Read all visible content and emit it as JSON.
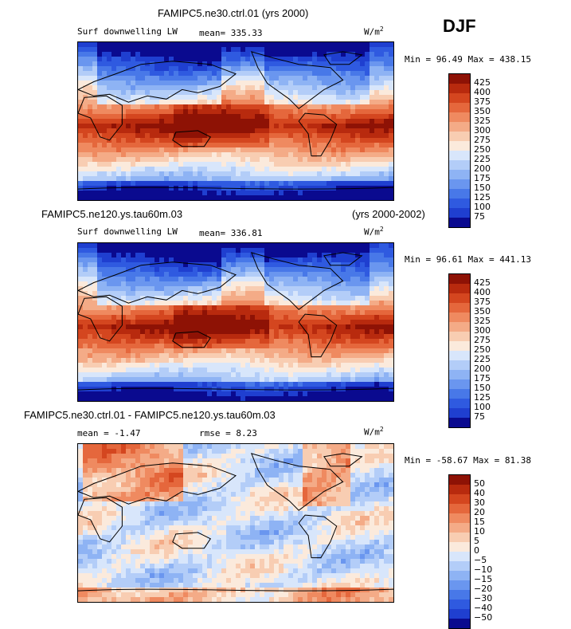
{
  "season": "DJF",
  "units": "W/m",
  "units_sup": "2",
  "colors": {
    "abs_scale": [
      "#ffffff",
      "#0a0a8f",
      "#1f3fd0",
      "#2f5ae0",
      "#4878e8",
      "#6a96ef",
      "#8eb3f4",
      "#b3cdf8",
      "#d8e6fb",
      "#fbeadc",
      "#f8cdb2",
      "#f4ab87",
      "#ef8a60",
      "#e5673c",
      "#d4461f",
      "#b82a0e",
      "#8e1205"
    ],
    "diff_scale": [
      "#ffffff",
      "#0a0a8f",
      "#1f3fd0",
      "#2f5ae0",
      "#4878e8",
      "#6a96ef",
      "#8eb3f4",
      "#b3cdf8",
      "#d8e6fb",
      "#fbeadc",
      "#f8cdb2",
      "#f4ab87",
      "#ef8a60",
      "#e5673c",
      "#d4461f",
      "#b82a0e",
      "#8e1205"
    ],
    "coast": "#000000"
  },
  "chart_data": [
    {
      "type": "heatmap",
      "title": "FAMIPC5.ne30.ctrl.01 (yrs 2000)",
      "subtitle_left": "Surf downwelling LW",
      "stat_label": "mean=",
      "stat_value": "335.33",
      "min_label": "Min =",
      "min_value": "96.49",
      "max_label": "Max =",
      "max_value": "438.15",
      "colorbar_levels": [
        "425",
        "400",
        "375",
        "350",
        "325",
        "300",
        "275",
        "250",
        "225",
        "200",
        "175",
        "150",
        "125",
        "100",
        "75"
      ],
      "field": "absolute"
    },
    {
      "type": "heatmap",
      "title_left": "FAMIPC5.ne120.ys.tau60m.03",
      "title_right": "(yrs 2000-2002)",
      "subtitle_left": "Surf downwelling LW",
      "stat_label": "mean=",
      "stat_value": "336.81",
      "min_label": "Min =",
      "min_value": "96.61",
      "max_label": "Max =",
      "max_value": "441.13",
      "colorbar_levels": [
        "425",
        "400",
        "375",
        "350",
        "325",
        "300",
        "275",
        "250",
        "225",
        "200",
        "175",
        "150",
        "125",
        "100",
        "75"
      ],
      "field": "absolute"
    },
    {
      "type": "heatmap",
      "title": "FAMIPC5.ne30.ctrl.01 - FAMIPC5.ne120.ys.tau60m.03",
      "stat_label": "mean =",
      "stat_value": "-1.47",
      "stat2_label": "rmse =",
      "stat2_value": "8.23",
      "min_label": "Min =",
      "min_value": "-58.67",
      "max_label": "Max =",
      "max_value": "81.38",
      "colorbar_levels": [
        "50",
        "40",
        "30",
        "20",
        "15",
        "10",
        "5",
        "0",
        "-5",
        "-10",
        "-15",
        "-20",
        "-30",
        "-40",
        "-50"
      ],
      "field": "difference"
    }
  ]
}
